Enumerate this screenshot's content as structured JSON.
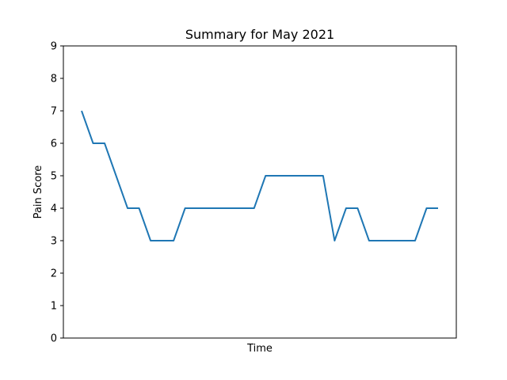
{
  "chart_data": {
    "type": "line",
    "title": "Summary for May 2021",
    "xlabel": "Time",
    "ylabel": "Pain Score",
    "ylim": [
      0,
      9
    ],
    "yticks": [
      "0",
      "1",
      "2",
      "3",
      "4",
      "5",
      "6",
      "7",
      "8",
      "9"
    ],
    "x_tick_labels_shown": false,
    "grid": false,
    "legend": "none",
    "series": [
      {
        "color": "#1f77b4",
        "values": [
          7,
          6,
          6,
          5,
          4,
          4,
          3,
          3,
          3,
          4,
          4,
          4,
          4,
          4,
          4,
          4,
          5,
          5,
          5,
          5,
          5,
          5,
          3,
          4,
          4,
          3,
          3,
          3,
          3,
          3,
          4,
          4
        ]
      }
    ]
  }
}
